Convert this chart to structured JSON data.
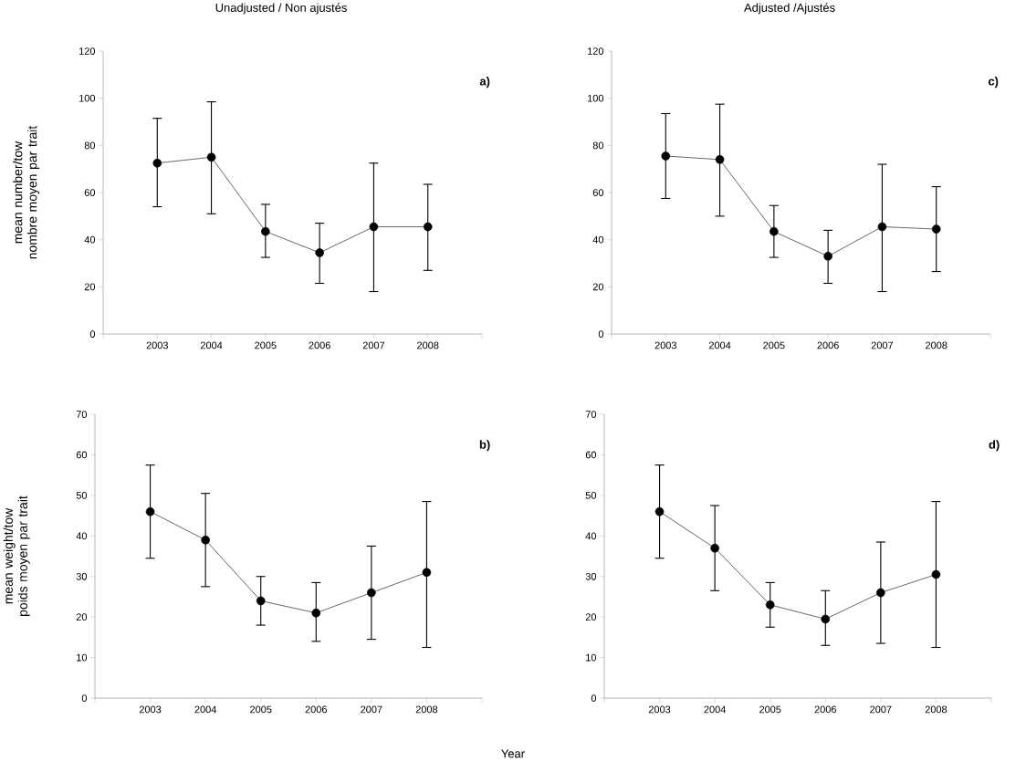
{
  "chart_data": [
    {
      "type": "line",
      "title": "Unadjusted / Non ajustés",
      "ylabel": "mean number/tow nombre moyen par trait",
      "annotations": [
        "a)"
      ],
      "categories": [
        "2003",
        "2004",
        "2005",
        "2006",
        "2007",
        "2008"
      ],
      "ylim": [
        0,
        120
      ],
      "yticks": [
        0,
        20,
        40,
        60,
        80,
        100,
        120
      ],
      "color": "#000000",
      "marker": "circle",
      "line_style": "solid",
      "values": [
        72.5,
        75,
        43.5,
        34.5,
        45.5,
        45.5
      ],
      "errors": [
        [
          54,
          91.5
        ],
        [
          51,
          98.5
        ],
        [
          32.5,
          55
        ],
        [
          21.5,
          47
        ],
        [
          18,
          72.5
        ],
        [
          27,
          63.5
        ]
      ]
    },
    {
      "type": "line",
      "title": "Adjusted /Ajustés",
      "annotations": [
        "c)"
      ],
      "categories": [
        "2003",
        "2004",
        "2005",
        "2006",
        "2007",
        "2008"
      ],
      "ylim": [
        0,
        120
      ],
      "yticks": [
        0,
        20,
        40,
        60,
        80,
        100,
        120
      ],
      "color": "#000000",
      "marker": "circle",
      "line_style": "solid",
      "values": [
        75.5,
        74,
        43.5,
        33,
        45.5,
        44.5
      ],
      "errors": [
        [
          57.5,
          93.5
        ],
        [
          50,
          97.5
        ],
        [
          32.5,
          54.5
        ],
        [
          21.5,
          44
        ],
        [
          18,
          72
        ],
        [
          26.5,
          62.5
        ]
      ]
    },
    {
      "type": "line",
      "ylabel": "mean weight/tow poids moyen par trait",
      "xlabel": "Year",
      "annotations": [
        "b)"
      ],
      "categories": [
        "2003",
        "2004",
        "2005",
        "2006",
        "2007",
        "2008"
      ],
      "ylim": [
        0,
        70
      ],
      "yticks": [
        0,
        10,
        20,
        30,
        40,
        50,
        60,
        70
      ],
      "color": "#000000",
      "marker": "circle",
      "line_style": "solid",
      "values": [
        46,
        39,
        24,
        21,
        26,
        31
      ],
      "errors": [
        [
          34.5,
          57.5
        ],
        [
          27.5,
          50.5
        ],
        [
          18,
          30
        ],
        [
          14,
          28.5
        ],
        [
          14.5,
          37.5
        ],
        [
          12.5,
          48.5
        ]
      ]
    },
    {
      "type": "line",
      "annotations": [
        "d)"
      ],
      "categories": [
        "2003",
        "2004",
        "2005",
        "2006",
        "2007",
        "2008"
      ],
      "ylim": [
        0,
        70
      ],
      "yticks": [
        0,
        10,
        20,
        30,
        40,
        50,
        60,
        70
      ],
      "color": "#000000",
      "marker": "circle",
      "line_style": "solid",
      "values": [
        46,
        37,
        23,
        19.5,
        26,
        30.5
      ],
      "errors": [
        [
          34.5,
          57.5
        ],
        [
          26.5,
          47.5
        ],
        [
          17.5,
          28.5
        ],
        [
          13,
          26.5
        ],
        [
          13.5,
          38.5
        ],
        [
          12.5,
          48.5
        ]
      ]
    }
  ]
}
